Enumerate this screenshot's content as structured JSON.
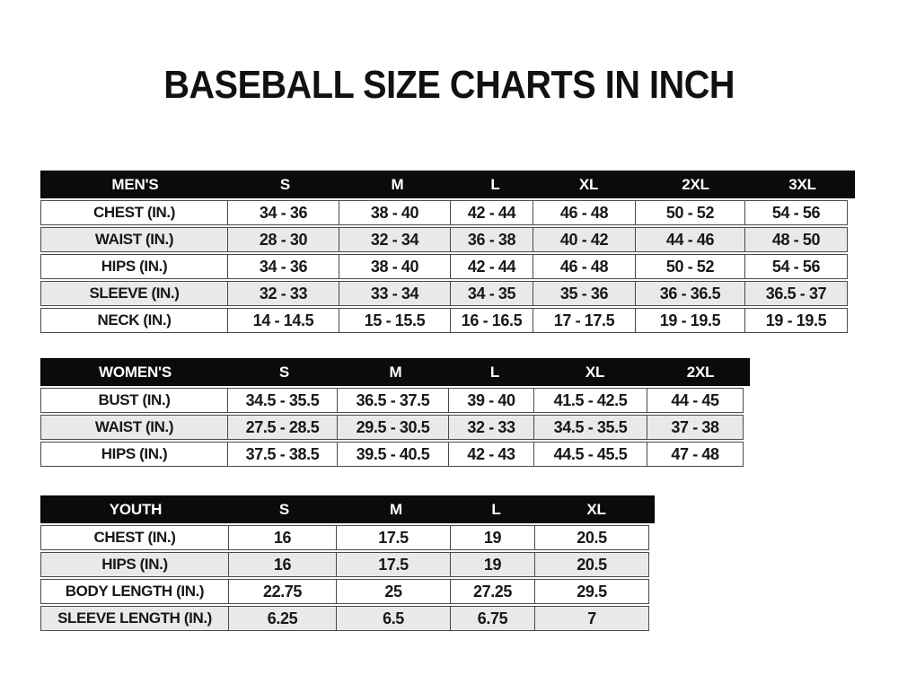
{
  "title": "BASEBALL SIZE CHARTS IN INCH",
  "colors": {
    "header_bg": "#0b0b0b",
    "header_text": "#ffffff",
    "row_stripe": "#e9e9e9",
    "cell_border": "#4a4a4a",
    "text": "#181818",
    "page_bg": "#ffffff"
  },
  "chart_data": [
    {
      "type": "table",
      "id": "mens",
      "title": "MEN'S",
      "columns": [
        "MEN'S",
        "S",
        "M",
        "L",
        "XL",
        "2XL",
        "3XL"
      ],
      "rows": [
        [
          "CHEST (IN.)",
          "34 - 36",
          "38 - 40",
          "42 - 44",
          "46 - 48",
          "50 - 52",
          "54 - 56"
        ],
        [
          "WAIST (IN.)",
          "28 - 30",
          "32 - 34",
          "36 - 38",
          "40 - 42",
          "44 - 46",
          "48 - 50"
        ],
        [
          "HIPS (IN.)",
          "34 - 36",
          "38 - 40",
          "42 - 44",
          "46 - 48",
          "50 - 52",
          "54 - 56"
        ],
        [
          "SLEEVE (IN.)",
          "32 - 33",
          "33 - 34",
          "34 - 35",
          "35 - 36",
          "36 - 36.5",
          "36.5 - 37"
        ],
        [
          "NECK (IN.)",
          "14 - 14.5",
          "15 - 15.5",
          "16 - 16.5",
          "17 - 17.5",
          "19 - 19.5",
          "19 - 19.5"
        ]
      ]
    },
    {
      "type": "table",
      "id": "womens",
      "title": "WOMEN'S",
      "columns": [
        "WOMEN'S",
        "S",
        "M",
        "L",
        "XL",
        "2XL"
      ],
      "rows": [
        [
          "BUST (IN.)",
          "34.5 - 35.5",
          "36.5 - 37.5",
          "39 - 40",
          "41.5 - 42.5",
          "44 - 45"
        ],
        [
          "WAIST (IN.)",
          "27.5 - 28.5",
          "29.5 - 30.5",
          "32 - 33",
          "34.5 - 35.5",
          "37 - 38"
        ],
        [
          "HIPS (IN.)",
          "37.5 - 38.5",
          "39.5 - 40.5",
          "42 - 43",
          "44.5 - 45.5",
          "47 - 48"
        ]
      ]
    },
    {
      "type": "table",
      "id": "youth",
      "title": "YOUTH",
      "columns": [
        "YOUTH",
        "S",
        "M",
        "L",
        "XL"
      ],
      "rows": [
        [
          "CHEST (IN.)",
          "16",
          "17.5",
          "19",
          "20.5"
        ],
        [
          "HIPS (IN.)",
          "16",
          "17.5",
          "19",
          "20.5"
        ],
        [
          "BODY LENGTH (IN.)",
          "22.75",
          "25",
          "27.25",
          "29.5"
        ],
        [
          "SLEEVE LENGTH (IN.)",
          "6.25",
          "6.5",
          "6.75",
          "7"
        ]
      ]
    }
  ]
}
